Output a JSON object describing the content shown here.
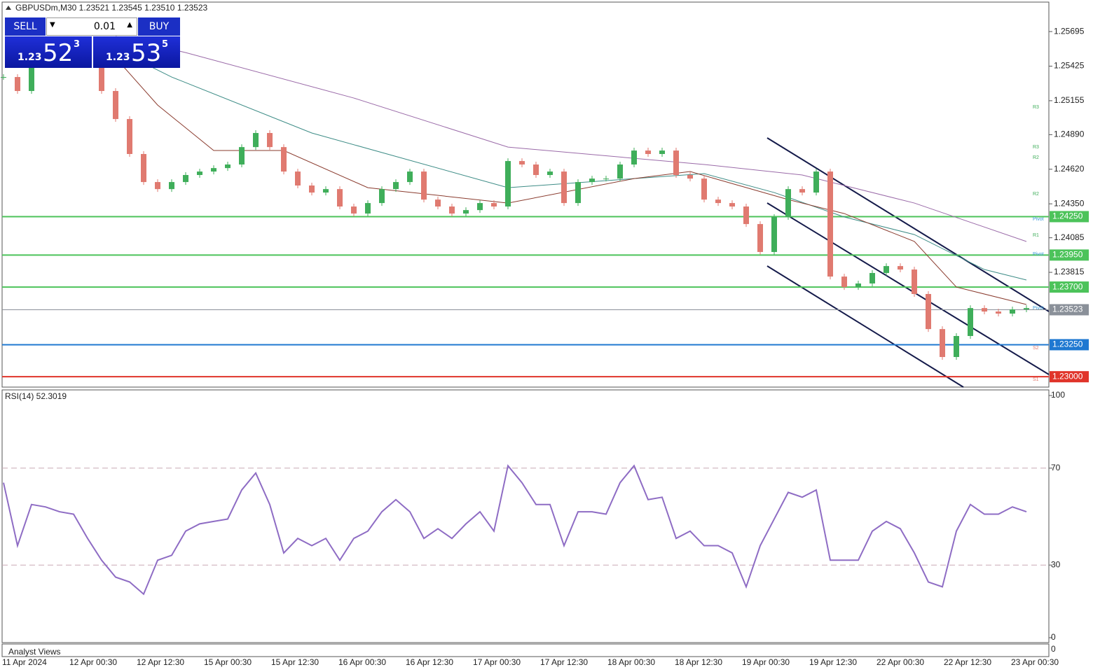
{
  "chart_data": {
    "type": "candlestick",
    "header": "GBPUSDm,M30  1.23521 1.23545 1.23510 1.23523",
    "trade_panel": {
      "sell": "SELL",
      "buy": "BUY",
      "lot": "0.01",
      "bid_prefix": "1.23",
      "bid_big": "52",
      "bid_sup": "3",
      "ask_prefix": "1.23",
      "ask_big": "53",
      "ask_sup": "5"
    },
    "x_labels": [
      "11 Apr 2024",
      "12 Apr 00:30",
      "12 Apr 12:30",
      "15 Apr 00:30",
      "15 Apr 12:30",
      "16 Apr 00:30",
      "16 Apr 12:30",
      "17 Apr 00:30",
      "17 Apr 12:30",
      "18 Apr 00:30",
      "18 Apr 12:30",
      "19 Apr 00:30",
      "19 Apr 12:30",
      "22 Apr 00:30",
      "22 Apr 12:30",
      "23 Apr 00:30"
    ],
    "close": [
      1.2534,
      1.25231,
      1.25504,
      1.25613,
      1.25613,
      1.25558,
      1.25476,
      1.25231,
      1.25012,
      1.24739,
      1.2452,
      1.24465,
      1.2452,
      1.24575,
      1.24602,
      1.24629,
      1.24657,
      1.24793,
      1.24903,
      1.24793,
      1.24602,
      1.24493,
      1.24438,
      1.24465,
      1.24329,
      1.24274,
      1.24356,
      1.24465,
      1.2452,
      1.24602,
      1.24383,
      1.24329,
      1.24274,
      1.24301,
      1.24356,
      1.24329,
      1.24684,
      1.24657,
      1.24575,
      1.24602,
      1.24356,
      1.2452,
      1.24547,
      1.24547,
      1.24657,
      1.24766,
      1.24739,
      1.24766,
      1.24575,
      1.24547,
      1.24383,
      1.24356,
      1.24329,
      1.24192,
      1.23974,
      1.24247,
      1.24465,
      1.24438,
      1.24602,
      1.23782,
      1.237,
      1.23728,
      1.2381,
      1.23864,
      1.23837,
      1.23646,
      1.23372,
      1.23154,
      1.23318,
      1.23536,
      1.23509,
      1.23493,
      1.23526,
      1.23536
    ],
    "up_color": "#3fae5a",
    "down_color": "#e07a70",
    "moving_averages": [
      {
        "color": "#9a6aa8",
        "x": [
          8,
          13,
          25,
          36,
          50,
          57,
          65,
          73
        ],
        "values": [
          1.25657,
          1.25531,
          1.25176,
          1.24793,
          1.24657,
          1.24575,
          1.24356,
          1.24056
        ]
      },
      {
        "color": "#3d8c86",
        "x": [
          8,
          12,
          22,
          36,
          45,
          50,
          55,
          60,
          65,
          70,
          73
        ],
        "values": [
          1.25558,
          1.2534,
          1.24903,
          1.24476,
          1.24547,
          1.24586,
          1.24438,
          1.24247,
          1.2411,
          1.23837,
          1.23755
        ]
      },
      {
        "color": "#8a3b2e",
        "x": [
          7,
          11,
          15,
          20,
          26,
          36,
          45,
          49,
          56,
          60,
          65,
          68,
          73
        ],
        "values": [
          1.25613,
          1.25121,
          1.24766,
          1.24766,
          1.24476,
          1.24356,
          1.24547,
          1.24602,
          1.24383,
          1.24274,
          1.24056,
          1.237,
          1.23564
        ]
      }
    ],
    "ylim": [
      1.22919,
      1.25925
    ],
    "yticks": [
      1.25695,
      1.25425,
      1.25155,
      {
        "value": 1.2489,
        "label": "1.24890"
      },
      {
        "value": 1.2462,
        "label": "1.24620"
      },
      {
        "value": 1.2435,
        "label": "1.24350"
      },
      1.24085,
      1.23815
    ],
    "hlines": [
      {
        "value": 1.2425,
        "label": "1.24250",
        "color": "#4cc35a"
      },
      {
        "value": 1.2395,
        "label": "1.23950",
        "color": "#4cc35a"
      },
      {
        "value": 1.237,
        "label": "1.23700",
        "color": "#4cc35a"
      },
      {
        "value": 1.23523,
        "label": "1.23523",
        "color": "#8a9099"
      },
      {
        "value": 1.2325,
        "label": "1.23250",
        "color": "#1f78d1"
      },
      {
        "value": 1.23,
        "label": "1.23000",
        "color": "#e0342a"
      }
    ],
    "level_tags": [
      {
        "label": "R3",
        "value": 1.25105
      },
      {
        "label": "R3",
        "value": 1.24793
      },
      {
        "label": "R2",
        "value": 1.24711
      },
      {
        "label": "R2",
        "value": 1.24427
      },
      {
        "label": "Pivot",
        "value": 1.2423
      },
      {
        "label": "R1",
        "value": 1.24105
      },
      {
        "label": "Pivot",
        "value": 1.23957
      },
      {
        "label": "Pivot",
        "value": 1.23536
      },
      {
        "label": "S2",
        "value": 1.23225
      },
      {
        "label": "S1",
        "value": 1.22979
      }
    ],
    "rsi": {
      "title": "RSI(14) 52.3019",
      "color": "#8e6cc4",
      "ylim": [
        0,
        100
      ],
      "yticks": [
        100,
        70,
        30,
        0
      ],
      "levels": [
        70,
        30
      ],
      "values": [
        64,
        38,
        55,
        54,
        52,
        51,
        41,
        32,
        25,
        23,
        18,
        32,
        34,
        44,
        47,
        48,
        49,
        61,
        68,
        55,
        35,
        41,
        38,
        41,
        32,
        41,
        44,
        52,
        57,
        52,
        41,
        45,
        41,
        47,
        52,
        44,
        71,
        64,
        55,
        55,
        38,
        52,
        52,
        51,
        64,
        71,
        57,
        58,
        41,
        44,
        38,
        38,
        35,
        21,
        38,
        49,
        60,
        58,
        61,
        32,
        32,
        32,
        44,
        48,
        45,
        35,
        23,
        21,
        44,
        55,
        51,
        51,
        54,
        52
      ]
    },
    "footer": "Analyst Views",
    "corner_label": "0"
  }
}
